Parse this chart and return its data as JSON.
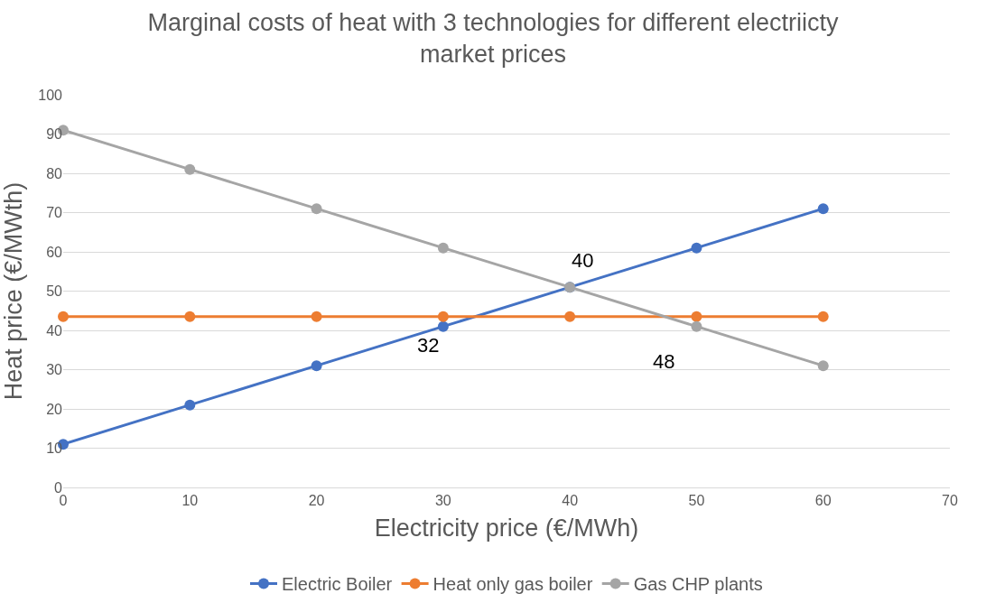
{
  "chart_data": {
    "type": "line",
    "title": "Marginal costs of heat with 3 technologies for different electriicty market prices",
    "xlabel": "Electricity price (€/MWh)",
    "ylabel": "Heat price (€/MWth)",
    "x": [
      0,
      10,
      20,
      30,
      40,
      50,
      60
    ],
    "series": [
      {
        "name": "Electric Boiler",
        "color": "#4472c4",
        "values": [
          11,
          21,
          31,
          41,
          51,
          61,
          71
        ]
      },
      {
        "name": "Heat only gas boiler",
        "color": "#ed7d31",
        "values": [
          43.5,
          43.5,
          43.5,
          43.5,
          43.5,
          43.5,
          43.5
        ]
      },
      {
        "name": "Gas CHP plants",
        "color": "#a5a5a5",
        "values": [
          91,
          81,
          71,
          61,
          51,
          41,
          31
        ]
      }
    ],
    "xlim": [
      0,
      70
    ],
    "xticks": [
      0,
      10,
      20,
      30,
      40,
      50,
      60,
      70
    ],
    "ylim": [
      0,
      100
    ],
    "yticks": [
      0,
      10,
      20,
      30,
      40,
      50,
      60,
      70,
      80,
      90,
      100
    ],
    "annotations": [
      {
        "text": "32",
        "x": 32,
        "y": 43.5
      },
      {
        "text": "40",
        "x": 40,
        "y": 51
      },
      {
        "text": "48",
        "x": 48,
        "y": 43.5
      }
    ],
    "grid": "y",
    "legend": "bottom",
    "marker": "circle",
    "line_style": "solid"
  }
}
